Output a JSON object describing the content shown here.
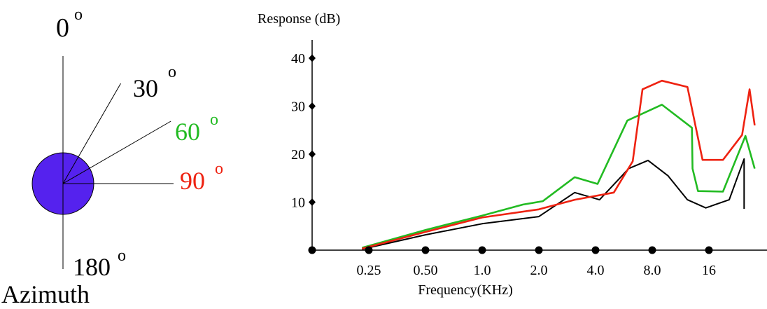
{
  "azimuth_diagram": {
    "label": "Azimuth",
    "head_color": "#5522ee",
    "directions": [
      {
        "value": "0",
        "unit": "o",
        "angle_deg": 0,
        "color": "#000000"
      },
      {
        "value": "30",
        "unit": "o",
        "angle_deg": 30,
        "color": "#000000"
      },
      {
        "value": "60",
        "unit": "o",
        "angle_deg": 60,
        "color": "#22bb22"
      },
      {
        "value": "90",
        "unit": "o",
        "angle_deg": 90,
        "color": "#ee2211"
      },
      {
        "value": "180",
        "unit": "o",
        "angle_deg": 180,
        "color": "#000000"
      }
    ]
  },
  "chart_data": {
    "type": "line",
    "title": "",
    "xlabel": "Frequency(KHz)",
    "ylabel": "Response (dB)",
    "x_scale": "log2",
    "xlim": [
      0.125,
      32
    ],
    "ylim": [
      0,
      40
    ],
    "x_ticks": [
      {
        "value": 0.25,
        "label": "0.25"
      },
      {
        "value": 0.5,
        "label": "0.50"
      },
      {
        "value": 1,
        "label": "1.0"
      },
      {
        "value": 2,
        "label": "2.0"
      },
      {
        "value": 4,
        "label": "4.0"
      },
      {
        "value": 8,
        "label": "8.0"
      },
      {
        "value": 16,
        "label": "16"
      }
    ],
    "y_ticks": [
      {
        "value": 10,
        "label": "10"
      },
      {
        "value": 20,
        "label": "20"
      },
      {
        "value": 30,
        "label": "30"
      },
      {
        "value": 40,
        "label": "40"
      }
    ],
    "grid": false,
    "legend": "none",
    "series": [
      {
        "azimuth": "30",
        "color": "#000000",
        "points": [
          [
            0.23,
            0.2
          ],
          [
            0.5,
            3.2
          ],
          [
            1,
            5.5
          ],
          [
            2,
            7.0
          ],
          [
            3.1,
            12.0
          ],
          [
            4.2,
            10.5
          ],
          [
            6.0,
            17.0
          ],
          [
            7.6,
            18.7
          ],
          [
            9.7,
            15.5
          ],
          [
            12.3,
            10.5
          ],
          [
            15.4,
            8.8
          ],
          [
            20.5,
            10.5
          ],
          [
            24.6,
            19.0
          ],
          [
            24.6,
            8.6
          ]
        ]
      },
      {
        "azimuth": "60",
        "color": "#22bb22",
        "points": [
          [
            0.23,
            0.5
          ],
          [
            0.5,
            4.2
          ],
          [
            1,
            7.2
          ],
          [
            1.65,
            9.5
          ],
          [
            2.1,
            10.2
          ],
          [
            3.1,
            15.2
          ],
          [
            4.1,
            13.8
          ],
          [
            5.9,
            27.0
          ],
          [
            9.0,
            30.3
          ],
          [
            13.0,
            25.5
          ],
          [
            13.1,
            17.0
          ],
          [
            14.0,
            12.3
          ],
          [
            19.0,
            12.2
          ],
          [
            25.0,
            23.8
          ],
          [
            28.0,
            17.0
          ]
        ]
      },
      {
        "azimuth": "90",
        "color": "#ee2211",
        "points": [
          [
            0.23,
            0.3
          ],
          [
            0.5,
            3.8
          ],
          [
            1,
            6.8
          ],
          [
            2,
            8.5
          ],
          [
            3.1,
            10.5
          ],
          [
            5.0,
            12.0
          ],
          [
            6.3,
            18.5
          ],
          [
            7.1,
            33.5
          ],
          [
            9.0,
            35.3
          ],
          [
            12.3,
            34.0
          ],
          [
            14.8,
            18.8
          ],
          [
            19.0,
            18.8
          ],
          [
            24.0,
            24.0
          ],
          [
            26.3,
            33.5
          ],
          [
            28.0,
            26.0
          ]
        ]
      }
    ]
  }
}
